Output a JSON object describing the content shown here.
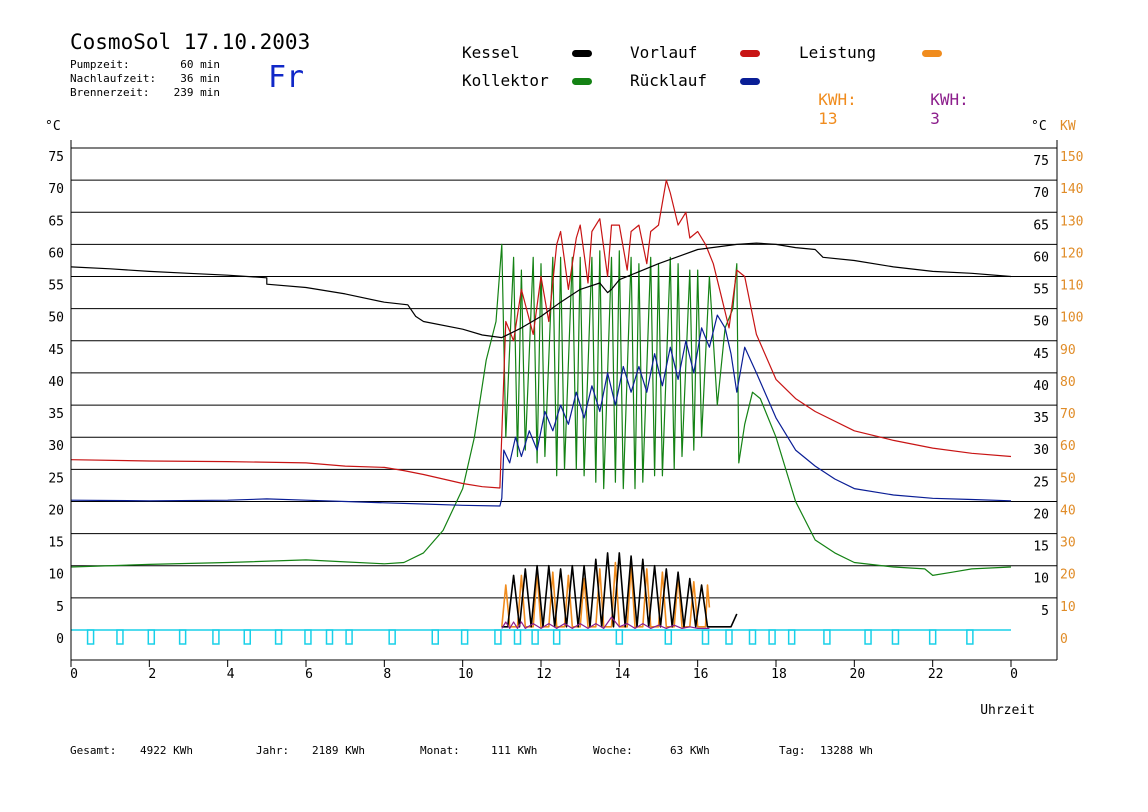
{
  "header": {
    "title": "CosmoSol 17.10.2003",
    "stats": [
      {
        "label": "Pumpzeit:",
        "value": "60 min"
      },
      {
        "label": "Nachlaufzeit:",
        "value": "36 min"
      },
      {
        "label": "Brennerzeit:",
        "value": "239 min"
      }
    ],
    "weekday": "Fr"
  },
  "legend": {
    "kessel": "Kessel",
    "vorlauf": "Vorlauf",
    "leistung": "Leistung",
    "kollektor": "Kollektor",
    "ruecklauf": "Rücklauf",
    "kwh_label_1": "KWH:",
    "kwh_value_1": "13",
    "kwh_label_2": "KWH:",
    "kwh_value_2": "3"
  },
  "colors": {
    "kessel": "#000000",
    "vorlauf": "#c81414",
    "kollektor": "#148214",
    "ruecklauf": "#0a1e96",
    "leistung": "#f08c1e",
    "kwh_purple": "#8c1e8c",
    "pump": "#18d0e8",
    "axis_right_kw": "#e08c28",
    "weekday": "#1028c8"
  },
  "footer": [
    {
      "label": "Gesamt:",
      "value": "4922 KWh"
    },
    {
      "label": "Jahr:",
      "value": "2189 KWh"
    },
    {
      "label": "Monat:",
      "value": "111 KWh"
    },
    {
      "label": "Woche:",
      "value": "63 KWh"
    },
    {
      "label": "Tag:",
      "value": "13288 Wh"
    }
  ],
  "chart_data": {
    "type": "line",
    "xlabel": "Uhrzeit",
    "ylabel_left": "°C",
    "ylabel_right": "°C",
    "ylabel_right_kw": "KW",
    "xlim": [
      0,
      24
    ],
    "ylim": [
      0,
      75
    ],
    "ylim_kw": [
      0,
      150
    ],
    "grid": true,
    "x_ticks": [
      "0",
      "2",
      "4",
      "6",
      "8",
      "10",
      "12",
      "14",
      "16",
      "18",
      "20",
      "22",
      "0"
    ],
    "y_ticks": [
      "0",
      "5",
      "10",
      "15",
      "20",
      "25",
      "30",
      "35",
      "40",
      "45",
      "50",
      "55",
      "60",
      "65",
      "70",
      "75"
    ],
    "y_ticks_right": [
      "5",
      "10",
      "15",
      "20",
      "25",
      "30",
      "35",
      "40",
      "45",
      "50",
      "55",
      "60",
      "65",
      "70",
      "75"
    ],
    "y_ticks_kw": [
      "0",
      "10",
      "20",
      "30",
      "40",
      "50",
      "60",
      "70",
      "80",
      "90",
      "100",
      "110",
      "120",
      "130",
      "140",
      "150"
    ],
    "series": [
      {
        "name": "Kessel",
        "x": [
          0,
          1,
          2,
          3,
          4,
          5,
          5,
          6,
          7,
          8,
          8.6,
          8.8,
          9,
          10,
          10.5,
          11,
          11.5,
          12,
          12.5,
          13,
          13.5,
          13.7,
          13.8,
          14,
          15,
          16,
          17,
          17.5,
          18,
          18.5,
          19,
          19.2,
          20,
          21,
          22,
          23,
          24
        ],
        "y": [
          56.5,
          56.2,
          55.8,
          55.5,
          55.2,
          54.8,
          53.8,
          53.3,
          52.3,
          51.0,
          50.6,
          48.8,
          48.0,
          46.8,
          45.9,
          45.5,
          47,
          48.8,
          51,
          53,
          54,
          52.5,
          53,
          54.5,
          57,
          59.2,
          60,
          60.2,
          60,
          59.5,
          59.2,
          58,
          57.5,
          56.5,
          55.8,
          55.5,
          55.0
        ]
      },
      {
        "name": "Vorlauf",
        "x": [
          0,
          2,
          4,
          6,
          7,
          8,
          8.5,
          9,
          9.5,
          10,
          10.5,
          10.95,
          11.0,
          11.1,
          11.3,
          11.5,
          11.8,
          12.0,
          12.2,
          12.4,
          12.5,
          12.7,
          12.9,
          13.0,
          13.2,
          13.3,
          13.5,
          13.7,
          13.8,
          14.0,
          14.2,
          14.3,
          14.5,
          14.7,
          14.8,
          15.0,
          15.2,
          15.3,
          15.5,
          15.7,
          15.8,
          16.0,
          16.2,
          16.4,
          16.6,
          16.8,
          17.0,
          17.2,
          17.5,
          18.0,
          18.5,
          19,
          20,
          21,
          22,
          23,
          24
        ],
        "y": [
          26.5,
          26.3,
          26.2,
          26.0,
          25.5,
          25.3,
          24.8,
          24.2,
          23.5,
          22.8,
          22.3,
          22.1,
          30.5,
          48,
          45,
          53,
          46,
          55,
          48,
          60,
          62,
          53,
          61,
          63,
          54,
          62,
          64,
          55,
          63,
          63,
          56,
          62,
          63,
          57,
          62,
          63,
          70,
          68,
          63,
          65,
          61,
          62,
          60,
          57,
          52,
          47,
          56,
          55,
          46,
          39,
          36,
          34,
          31,
          29.5,
          28.3,
          27.5,
          27.0
        ]
      },
      {
        "name": "Kollektor",
        "x": [
          0,
          2,
          4,
          6,
          7,
          8,
          8.5,
          9,
          9.5,
          10,
          10.3,
          10.6,
          10.85,
          11.0,
          11.1,
          11.3,
          11.4,
          11.5,
          11.6,
          11.8,
          11.9,
          12.0,
          12.1,
          12.3,
          12.4,
          12.5,
          12.6,
          12.8,
          12.9,
          13.0,
          13.1,
          13.3,
          13.4,
          13.5,
          13.6,
          13.8,
          13.9,
          14.0,
          14.1,
          14.3,
          14.4,
          14.5,
          14.6,
          14.8,
          14.9,
          15.0,
          15.1,
          15.3,
          15.4,
          15.5,
          15.6,
          15.8,
          15.9,
          16.0,
          16.1,
          16.3,
          16.5,
          16.7,
          16.9,
          17.0,
          17.05,
          17.2,
          17.4,
          17.6,
          18.0,
          18.5,
          19,
          19.5,
          20,
          21,
          21.8,
          22,
          22.5,
          23,
          24
        ],
        "y": [
          9.8,
          10.2,
          10.5,
          10.9,
          10.6,
          10.3,
          10.5,
          12,
          15.5,
          22,
          30,
          42,
          48,
          60,
          30,
          58,
          27,
          56,
          28,
          58,
          26,
          57,
          27,
          58,
          24,
          58,
          25,
          58,
          25,
          58,
          24,
          58,
          23,
          59,
          22,
          58,
          23,
          59,
          22,
          58,
          22,
          57,
          23,
          58,
          24,
          57,
          24,
          58,
          25,
          57,
          27,
          56,
          28,
          56,
          30,
          55,
          35,
          47,
          50,
          57,
          26,
          32,
          37,
          36,
          30,
          20,
          14,
          12,
          10.5,
          9.8,
          9.5,
          8.5,
          9,
          9.5,
          9.8
        ]
      },
      {
        "name": "Rücklauf",
        "x": [
          0,
          2,
          4,
          5,
          6,
          7,
          8,
          9,
          10,
          10.95,
          11.0,
          11.05,
          11.2,
          11.35,
          11.5,
          11.7,
          11.9,
          12.1,
          12.3,
          12.5,
          12.7,
          12.9,
          13.1,
          13.3,
          13.5,
          13.7,
          13.9,
          14.1,
          14.3,
          14.5,
          14.7,
          14.9,
          15.1,
          15.3,
          15.5,
          15.7,
          15.9,
          16.1,
          16.3,
          16.5,
          16.7,
          16.85,
          17.0,
          17.2,
          17.5,
          18.0,
          18.5,
          19,
          19.5,
          20,
          21,
          22,
          23,
          24
        ],
        "y": [
          20.2,
          20.1,
          20.2,
          20.4,
          20.2,
          20.0,
          19.8,
          19.6,
          19.4,
          19.3,
          20.5,
          28,
          26,
          30,
          27,
          31,
          28,
          34,
          31,
          35,
          32,
          37,
          33,
          38,
          34,
          40,
          35,
          41,
          37,
          41,
          37,
          43,
          38,
          44,
          39,
          45,
          40,
          47,
          44,
          49,
          47,
          43,
          37,
          44,
          40,
          33,
          28,
          25.5,
          23.5,
          22,
          21,
          20.5,
          20.3,
          20.1
        ]
      },
      {
        "name": "Leistung",
        "unit": "KW",
        "x": [
          11.0,
          11.1,
          11.2,
          11.4,
          11.5,
          11.6,
          11.8,
          11.9,
          12.0,
          12.2,
          12.3,
          12.4,
          12.6,
          12.7,
          12.8,
          13.0,
          13.1,
          13.2,
          13.4,
          13.5,
          13.6,
          13.8,
          13.9,
          14.0,
          14.2,
          14.3,
          14.4,
          14.6,
          14.7,
          14.8,
          15.0,
          15.1,
          15.2,
          15.4,
          15.5,
          15.6,
          15.8,
          15.9,
          16.0,
          16.2,
          16.25,
          16.3
        ],
        "y": [
          1,
          14,
          1,
          1,
          17,
          1,
          1,
          18,
          1,
          1,
          18,
          1,
          1,
          17,
          1,
          1,
          16,
          1,
          1,
          19,
          1,
          1,
          21,
          1,
          1,
          20,
          1,
          1,
          19,
          1,
          1,
          18,
          1,
          1,
          17,
          1,
          1,
          15,
          1,
          1,
          14,
          7
        ]
      },
      {
        "name": "Kessel Brenner",
        "unit": "KW",
        "x": [
          11.0,
          11.15,
          11.3,
          11.45,
          11.6,
          11.75,
          11.9,
          12.05,
          12.2,
          12.35,
          12.5,
          12.65,
          12.8,
          12.95,
          13.1,
          13.25,
          13.4,
          13.55,
          13.7,
          13.85,
          14.0,
          14.15,
          14.3,
          14.45,
          14.6,
          14.75,
          14.9,
          15.05,
          15.2,
          15.35,
          15.5,
          15.65,
          15.8,
          15.95,
          16.1,
          16.25,
          16.4,
          16.55,
          16.7,
          16.85,
          17.0
        ],
        "y": [
          1,
          1,
          17,
          1,
          19,
          1,
          20,
          1,
          20,
          1,
          19,
          1,
          20,
          1,
          20,
          1,
          22,
          1,
          24,
          1,
          24,
          1,
          23,
          1,
          22,
          1,
          20,
          1,
          19,
          1,
          18,
          1,
          16,
          1,
          14,
          1,
          1,
          1,
          1,
          1,
          5
        ]
      },
      {
        "name": "Kollektor Leistung",
        "unit": "KW",
        "x": [
          11.0,
          11.1,
          11.2,
          11.3,
          11.4,
          11.5,
          11.6,
          11.8,
          12.0,
          12.2,
          12.4,
          12.6,
          12.8,
          13.0,
          13.2,
          13.4,
          13.6,
          13.8,
          14.0,
          14.2,
          14.4,
          14.6,
          14.8,
          15.0,
          15.2,
          15.4,
          15.6,
          15.8,
          16.0,
          16.3
        ],
        "y": [
          0.5,
          2.5,
          0.5,
          2.5,
          0.5,
          2.5,
          0.5,
          2,
          0.5,
          2,
          0.5,
          2,
          0.5,
          2,
          0.5,
          2,
          0.5,
          4,
          1,
          2,
          0.5,
          2,
          0.5,
          1.5,
          0.5,
          1.5,
          0.5,
          1,
          0.5,
          0.5
        ]
      }
    ],
    "pump_pulses": [
      0.5,
      1.25,
      2.05,
      2.85,
      3.7,
      4.5,
      5.3,
      6.05,
      6.6,
      7.1,
      8.2,
      9.3,
      10.05,
      10.9,
      11.4,
      11.85,
      12.4,
      14.0,
      15.25,
      16.2,
      16.8,
      17.4,
      17.9,
      18.4,
      19.3,
      20.35,
      21.05,
      22.0,
      22.95
    ]
  }
}
